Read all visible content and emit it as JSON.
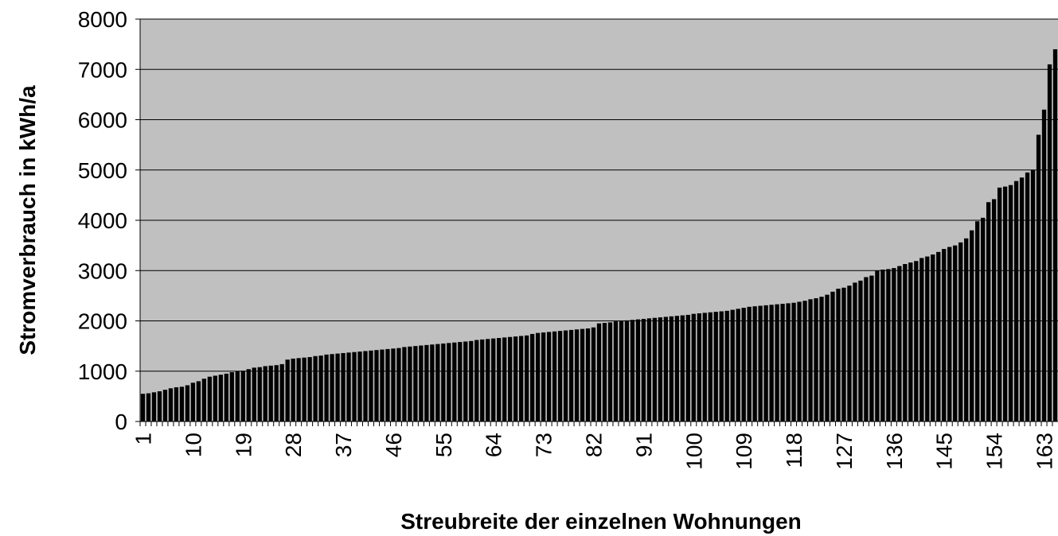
{
  "chart_data": {
    "type": "bar",
    "x_label": "Streubreite der einzelnen Wohnungen",
    "y_label": "Stromverbrauch in kWh/a",
    "categories": [
      "1",
      null,
      null,
      null,
      null,
      null,
      null,
      null,
      null,
      "10",
      null,
      null,
      null,
      null,
      null,
      null,
      null,
      null,
      "19",
      null,
      null,
      null,
      null,
      null,
      null,
      null,
      null,
      "28",
      null,
      null,
      null,
      null,
      null,
      null,
      null,
      null,
      "37",
      null,
      null,
      null,
      null,
      null,
      null,
      null,
      null,
      "46",
      null,
      null,
      null,
      null,
      null,
      null,
      null,
      null,
      "55",
      null,
      null,
      null,
      null,
      null,
      null,
      null,
      null,
      "64",
      null,
      null,
      null,
      null,
      null,
      null,
      null,
      null,
      "73",
      null,
      null,
      null,
      null,
      null,
      null,
      null,
      null,
      "82",
      null,
      null,
      null,
      null,
      null,
      null,
      null,
      null,
      "91",
      null,
      null,
      null,
      null,
      null,
      null,
      null,
      null,
      "100",
      null,
      null,
      null,
      null,
      null,
      null,
      null,
      null,
      "109",
      null,
      null,
      null,
      null,
      null,
      null,
      null,
      null,
      "118",
      null,
      null,
      null,
      null,
      null,
      null,
      null,
      null,
      "127",
      null,
      null,
      null,
      null,
      null,
      null,
      null,
      null,
      "136",
      null,
      null,
      null,
      null,
      null,
      null,
      null,
      null,
      "145",
      null,
      null,
      null,
      null,
      null,
      null,
      null,
      null,
      "154",
      null,
      null,
      null,
      null,
      null,
      null,
      null,
      null,
      "163",
      null,
      null
    ],
    "values": [
      550,
      560,
      580,
      600,
      630,
      660,
      680,
      690,
      720,
      770,
      800,
      850,
      890,
      910,
      930,
      950,
      980,
      1000,
      1010,
      1040,
      1070,
      1080,
      1100,
      1110,
      1120,
      1140,
      1230,
      1250,
      1260,
      1270,
      1280,
      1300,
      1310,
      1330,
      1340,
      1350,
      1360,
      1370,
      1380,
      1390,
      1400,
      1410,
      1420,
      1430,
      1440,
      1450,
      1460,
      1480,
      1490,
      1500,
      1510,
      1520,
      1530,
      1540,
      1550,
      1560,
      1570,
      1580,
      1590,
      1600,
      1620,
      1630,
      1640,
      1650,
      1660,
      1670,
      1680,
      1690,
      1700,
      1710,
      1740,
      1760,
      1770,
      1780,
      1790,
      1800,
      1810,
      1820,
      1830,
      1840,
      1850,
      1870,
      1950,
      1960,
      1970,
      1990,
      2000,
      2010,
      2020,
      2030,
      2040,
      2050,
      2060,
      2070,
      2080,
      2090,
      2100,
      2110,
      2120,
      2140,
      2150,
      2160,
      2170,
      2180,
      2190,
      2200,
      2220,
      2240,
      2260,
      2280,
      2290,
      2300,
      2310,
      2320,
      2330,
      2340,
      2350,
      2360,
      2380,
      2400,
      2430,
      2450,
      2480,
      2520,
      2580,
      2640,
      2660,
      2700,
      2760,
      2800,
      2870,
      2900,
      3000,
      3020,
      3030,
      3050,
      3090,
      3130,
      3160,
      3190,
      3250,
      3280,
      3320,
      3370,
      3430,
      3470,
      3500,
      3560,
      3640,
      3800,
      3980,
      4050,
      4360,
      4420,
      4650,
      4670,
      4700,
      4780,
      4850,
      4950,
      5000,
      5700,
      6200,
      7100,
      7400
    ],
    "color": "#000000",
    "ylim": [
      0,
      8000
    ],
    "yticks": [
      0,
      1000,
      2000,
      3000,
      4000,
      5000,
      6000,
      7000,
      8000
    ],
    "grid": true
  }
}
